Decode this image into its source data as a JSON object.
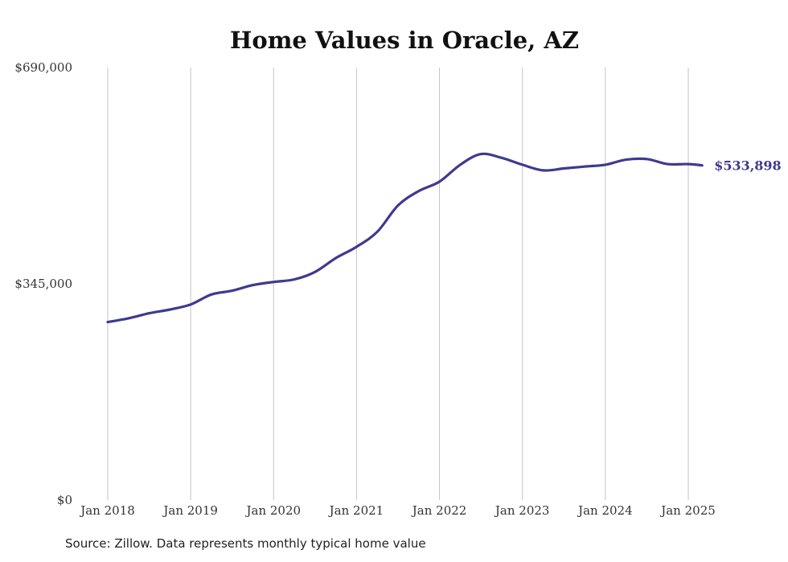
{
  "chart_data": {
    "type": "line",
    "title": "Home Values in Oracle, AZ",
    "xlabel": "",
    "ylabel": "",
    "ylim": [
      0,
      690000
    ],
    "y_ticks": [
      {
        "value": 0,
        "label": "$0"
      },
      {
        "value": 345000,
        "label": "$345,000"
      },
      {
        "value": 690000,
        "label": "$690,000"
      }
    ],
    "x_ticks": [
      {
        "value": 2018,
        "label": "Jan 2018"
      },
      {
        "value": 2019,
        "label": "Jan 2019"
      },
      {
        "value": 2020,
        "label": "Jan 2020"
      },
      {
        "value": 2021,
        "label": "Jan 2021"
      },
      {
        "value": 2022,
        "label": "Jan 2022"
      },
      {
        "value": 2023,
        "label": "Jan 2023"
      },
      {
        "value": 2024,
        "label": "Jan 2024"
      },
      {
        "value": 2025,
        "label": "Jan 2025"
      }
    ],
    "grid": {
      "vertical": true,
      "horizontal": false
    },
    "series": [
      {
        "color": "#3f3a8f",
        "end_label": "$533,898",
        "points": [
          [
            "Jan 2018",
            284000
          ],
          [
            "Apr 2018",
            290000
          ],
          [
            "Jul 2018",
            298000
          ],
          [
            "Oct 2018",
            304000
          ],
          [
            "Jan 2019",
            312000
          ],
          [
            "Apr 2019",
            328000
          ],
          [
            "Jul 2019",
            334000
          ],
          [
            "Oct 2019",
            343000
          ],
          [
            "Jan 2020",
            348000
          ],
          [
            "Apr 2020",
            352000
          ],
          [
            "Jul 2020",
            364000
          ],
          [
            "Oct 2020",
            386000
          ],
          [
            "Jan 2021",
            404000
          ],
          [
            "Apr 2021",
            428000
          ],
          [
            "Jul 2021",
            470000
          ],
          [
            "Oct 2021",
            493000
          ],
          [
            "Jan 2022",
            508000
          ],
          [
            "Apr 2022",
            535000
          ],
          [
            "Jul 2022",
            552000
          ],
          [
            "Oct 2022",
            546000
          ],
          [
            "Jan 2023",
            535000
          ],
          [
            "Apr 2023",
            526000
          ],
          [
            "Jul 2023",
            529000
          ],
          [
            "Oct 2023",
            532000
          ],
          [
            "Jan 2024",
            535000
          ],
          [
            "Apr 2024",
            543000
          ],
          [
            "Jul 2024",
            544000
          ],
          [
            "Oct 2024",
            536000
          ],
          [
            "Jan 2025",
            536000
          ],
          [
            "Mar 2025",
            533898
          ]
        ]
      }
    ]
  },
  "source": "Source: Zillow. Data represents monthly typical home value"
}
